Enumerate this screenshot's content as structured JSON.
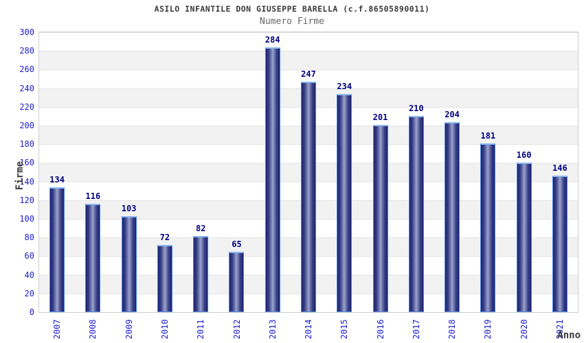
{
  "chart_data": {
    "type": "bar",
    "title": "ASILO INFANTILE DON GIUSEPPE BARELLA (c.f.86505890011)",
    "subtitle": "Numero Firme",
    "xlabel": "Anno",
    "ylabel": "Firme",
    "categories": [
      "2007",
      "2008",
      "2009",
      "2010",
      "2011",
      "2012",
      "2013",
      "2014",
      "2015",
      "2016",
      "2017",
      "2018",
      "2019",
      "2020",
      "2021"
    ],
    "values": [
      134,
      116,
      103,
      72,
      82,
      65,
      284,
      247,
      234,
      201,
      210,
      204,
      181,
      160,
      146
    ],
    "ylim": [
      0,
      300
    ],
    "ytick_step": 20,
    "grid": "horizontal lines with alternating gray/white bands every 20 units",
    "legend": "none",
    "colors": {
      "bar_gradient_edge": "#1d2371",
      "bar_gradient_mid": "#3a4187",
      "bar_gradient_center": "#9ba2cc",
      "bar_stroke": "#4b87e6",
      "bar_top_cap": "#8ab9f3",
      "tick_label": "#1c1ccd",
      "value_label": "#000082",
      "band_gray": "#f2f2f2",
      "grid_line": "#e3e3e3",
      "plot_border": "#cfcfcf",
      "title_color": "#3a3a3a",
      "subtitle_color": "#666666"
    }
  }
}
